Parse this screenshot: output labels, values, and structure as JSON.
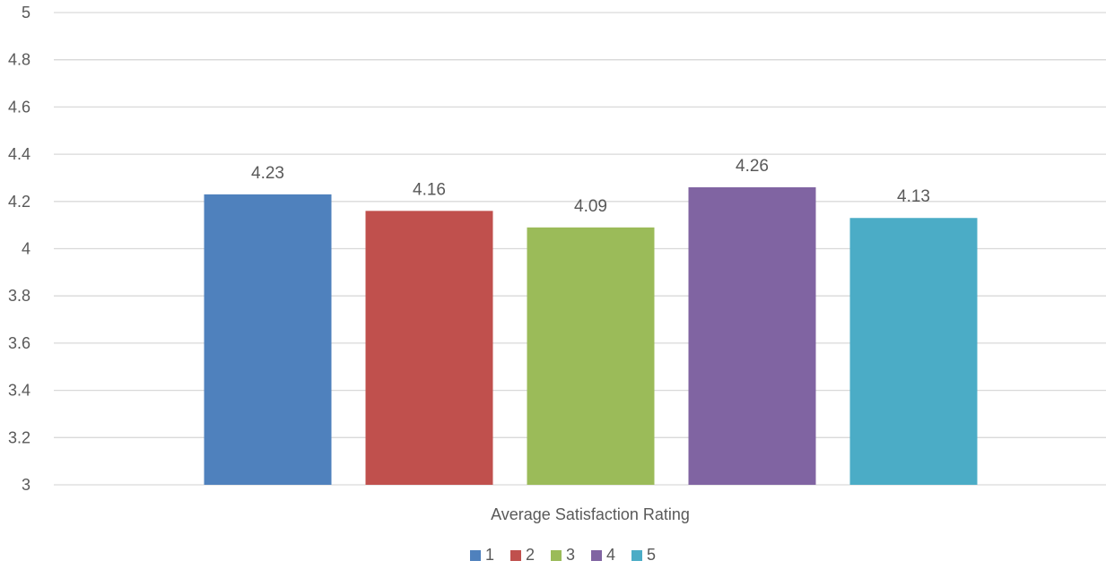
{
  "chart_data": {
    "type": "bar",
    "title": "",
    "xlabel": "",
    "ylabel": "",
    "categories": [
      "Average Satisfaction Rating"
    ],
    "category_label": "Average Satisfaction Rating",
    "ylim": [
      3,
      5
    ],
    "y_ticks": [
      3,
      3.2,
      3.4,
      3.6,
      3.8,
      4,
      4.2,
      4.4,
      4.6,
      4.8,
      5
    ],
    "y_tick_labels": [
      "3",
      "3.2",
      "3.4",
      "3.6",
      "3.8",
      "4",
      "4.2",
      "4.4",
      "4.6",
      "4.8",
      "5"
    ],
    "grid": true,
    "legend_position": "bottom",
    "series": [
      {
        "name": "1",
        "values": [
          4.23
        ],
        "label": "4.23",
        "color": "#4F81BD"
      },
      {
        "name": "2",
        "values": [
          4.16
        ],
        "label": "4.16",
        "color": "#C0504D"
      },
      {
        "name": "3",
        "values": [
          4.09
        ],
        "label": "4.09",
        "color": "#9BBB59"
      },
      {
        "name": "4",
        "values": [
          4.26
        ],
        "label": "4.26",
        "color": "#8064A2"
      },
      {
        "name": "5",
        "values": [
          4.13
        ],
        "label": "4.13",
        "color": "#4BACC6"
      }
    ]
  }
}
